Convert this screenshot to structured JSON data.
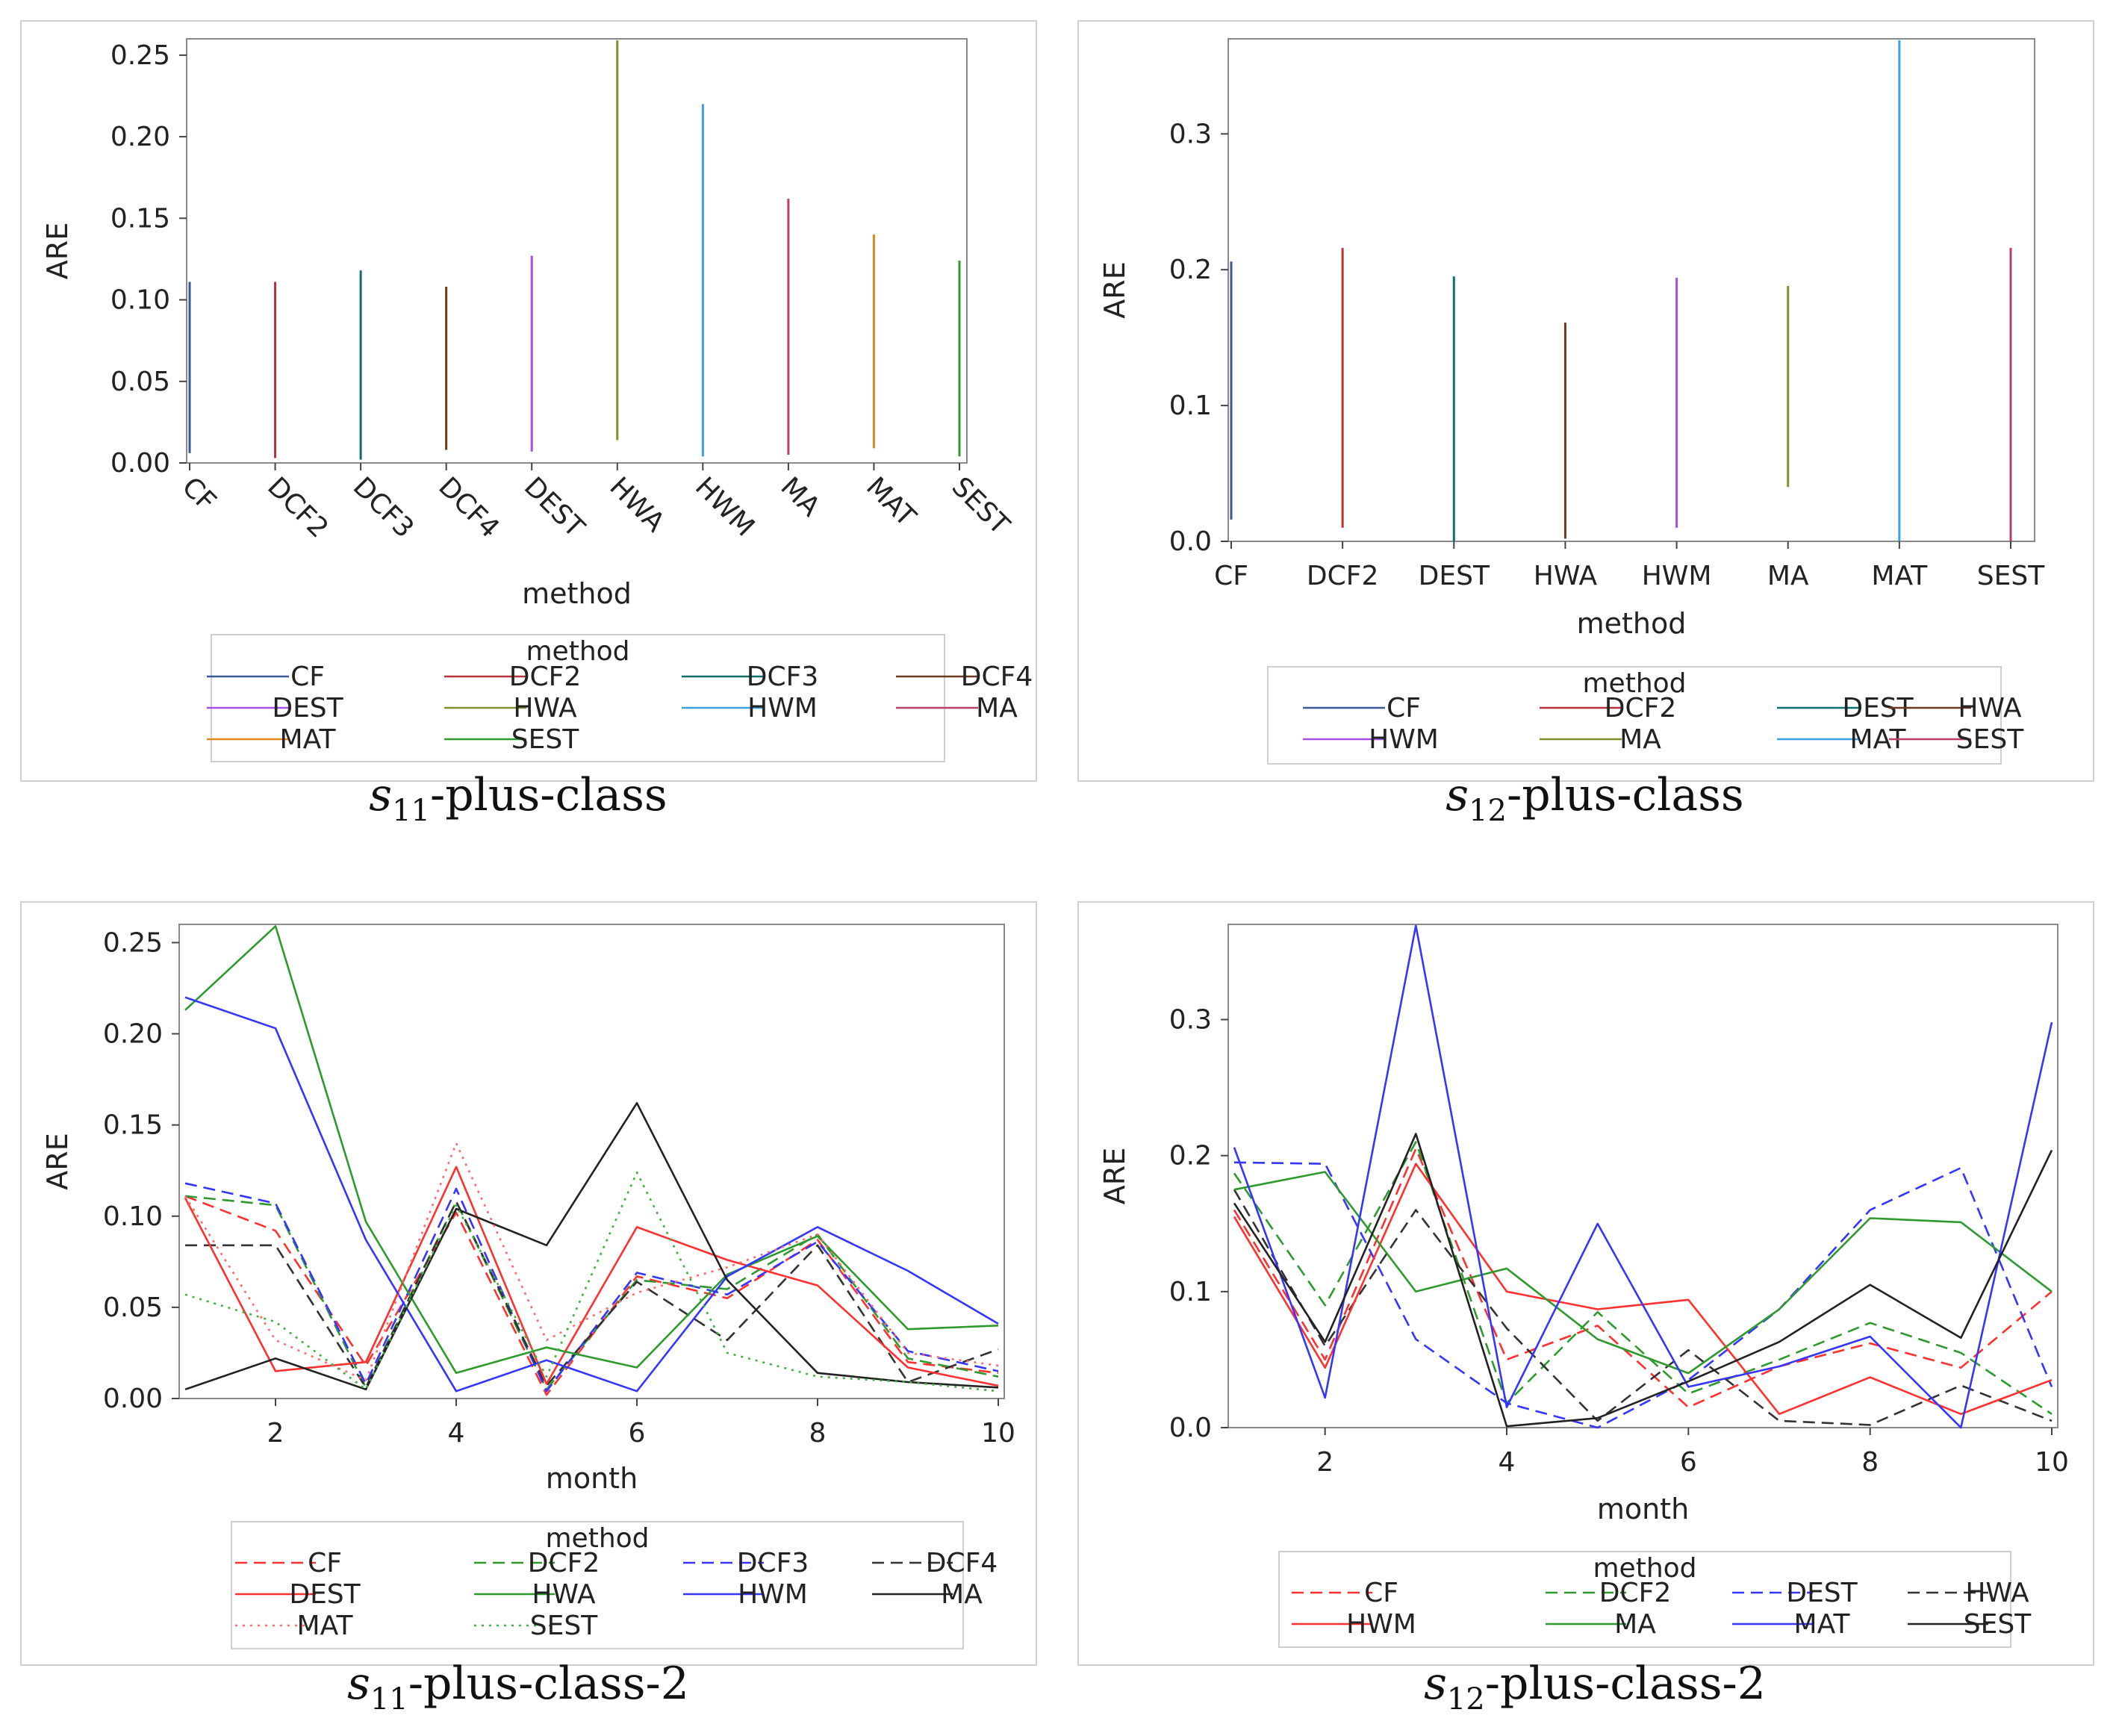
{
  "chart_data": [
    {
      "type": "line",
      "caption_sym": "s",
      "caption_sub": "11",
      "caption_rest": "-plus-class",
      "xlabel": "method",
      "ylabel": "ARE",
      "ylim": [
        0,
        0.26
      ],
      "yticks": [
        "0.00",
        "0.05",
        "0.10",
        "0.15",
        "0.20",
        "0.25"
      ],
      "categories": [
        "CF",
        "DCF2",
        "DCF3",
        "DCF4",
        "DEST",
        "HWA",
        "HWM",
        "MA",
        "MAT",
        "SEST"
      ],
      "legend_title": "method",
      "legend_items": [
        "CF",
        "DCF2",
        "DCF3",
        "DCF4",
        "DEST",
        "HWA",
        "HWM",
        "MA",
        "MAT",
        "SEST"
      ],
      "series": [
        {
          "name": "CF",
          "color": "#3b5998",
          "ymin": 0.006,
          "ymax": 0.111
        },
        {
          "name": "DCF2",
          "color": "#b5333a",
          "ymin": 0.003,
          "ymax": 0.111
        },
        {
          "name": "DCF3",
          "color": "#0f6e6e",
          "ymin": 0.002,
          "ymax": 0.118
        },
        {
          "name": "DCF4",
          "color": "#6b3a1e",
          "ymin": 0.008,
          "ymax": 0.108
        },
        {
          "name": "DEST",
          "color": "#a550e0",
          "ymin": 0.007,
          "ymax": 0.127
        },
        {
          "name": "HWA",
          "color": "#7f8f2a",
          "ymin": 0.014,
          "ymax": 0.259
        },
        {
          "name": "HWM",
          "color": "#3aa0e0",
          "ymin": 0.004,
          "ymax": 0.22
        },
        {
          "name": "MA",
          "color": "#b8406a",
          "ymin": 0.005,
          "ymax": 0.162
        },
        {
          "name": "MAT",
          "color": "#e08a1e",
          "ymin": 0.009,
          "ymax": 0.14
        },
        {
          "name": "SEST",
          "color": "#2e9a2e",
          "ymin": 0.004,
          "ymax": 0.124
        }
      ]
    },
    {
      "type": "line",
      "caption_sym": "s",
      "caption_sub": "12",
      "caption_rest": "-plus-class",
      "xlabel": "method",
      "ylabel": "ARE",
      "ylim": [
        0,
        0.37
      ],
      "yticks": [
        "0.0",
        "0.1",
        "0.2",
        "0.3"
      ],
      "categories": [
        "CF",
        "DCF2",
        "DEST",
        "HWA",
        "HWM",
        "MA",
        "MAT",
        "SEST"
      ],
      "legend_title": "method",
      "legend_items": [
        "CF",
        "DCF2",
        "DEST",
        "HWA",
        "HWM",
        "MA",
        "MAT",
        "SEST"
      ],
      "series": [
        {
          "name": "CF",
          "color": "#3b5998",
          "ymin": 0.016,
          "ymax": 0.206
        },
        {
          "name": "DCF2",
          "color": "#b5333a",
          "ymin": 0.01,
          "ymax": 0.216
        },
        {
          "name": "DEST",
          "color": "#0f6e6e",
          "ymin": 0.0,
          "ymax": 0.195
        },
        {
          "name": "HWA",
          "color": "#6b3a1e",
          "ymin": 0.002,
          "ymax": 0.161
        },
        {
          "name": "HWM",
          "color": "#a550e0",
          "ymin": 0.01,
          "ymax": 0.194
        },
        {
          "name": "MA",
          "color": "#7f8f2a",
          "ymin": 0.04,
          "ymax": 0.188
        },
        {
          "name": "MAT",
          "color": "#3aa0e0",
          "ymin": 0.0,
          "ymax": 0.369
        },
        {
          "name": "SEST",
          "color": "#b8406a",
          "ymin": 0.0,
          "ymax": 0.216
        }
      ]
    },
    {
      "type": "line",
      "caption_sym": "s",
      "caption_sub": "11",
      "caption_rest": "-plus-class-2",
      "xlabel": "month",
      "ylabel": "ARE",
      "xlim": [
        1,
        10
      ],
      "ylim": [
        0,
        0.26
      ],
      "xticks": [
        "2",
        "4",
        "6",
        "8",
        "10"
      ],
      "yticks": [
        "0.00",
        "0.05",
        "0.10",
        "0.15",
        "0.20",
        "0.25"
      ],
      "x": [
        1,
        2,
        3,
        4,
        5,
        6,
        7,
        8,
        9,
        10
      ],
      "legend_title": "method",
      "legend_items": [
        "CF",
        "DCF2",
        "DCF3",
        "DCF4",
        "DEST",
        "HWA",
        "HWM",
        "MA",
        "MAT",
        "SEST"
      ],
      "series": [
        {
          "name": "CF",
          "color": "#ff3030",
          "dash": "dash",
          "values": [
            0.111,
            0.092,
            0.018,
            0.102,
            0.002,
            0.067,
            0.055,
            0.087,
            0.02,
            0.014
          ]
        },
        {
          "name": "DCF2",
          "color": "#2e9a2e",
          "dash": "dash",
          "values": [
            0.111,
            0.106,
            0.006,
            0.108,
            0.005,
            0.065,
            0.06,
            0.09,
            0.022,
            0.012
          ]
        },
        {
          "name": "DCF3",
          "color": "#3535ff",
          "dash": "dash",
          "values": [
            0.118,
            0.107,
            0.008,
            0.115,
            0.004,
            0.069,
            0.057,
            0.086,
            0.026,
            0.015
          ]
        },
        {
          "name": "DCF4",
          "color": "#333333",
          "dash": "dash",
          "values": [
            0.084,
            0.084,
            0.006,
            0.108,
            0.007,
            0.064,
            0.032,
            0.084,
            0.009,
            0.027
          ]
        },
        {
          "name": "DEST",
          "color": "#ff3030",
          "dash": "solid",
          "values": [
            0.11,
            0.015,
            0.02,
            0.127,
            0.008,
            0.094,
            0.076,
            0.062,
            0.017,
            0.007
          ]
        },
        {
          "name": "HWA",
          "color": "#2e9a2e",
          "dash": "solid",
          "values": [
            0.213,
            0.259,
            0.097,
            0.014,
            0.028,
            0.017,
            0.068,
            0.089,
            0.038,
            0.04
          ]
        },
        {
          "name": "HWM",
          "color": "#3535ff",
          "dash": "solid",
          "values": [
            0.22,
            0.203,
            0.087,
            0.004,
            0.021,
            0.004,
            0.067,
            0.094,
            0.07,
            0.041
          ]
        },
        {
          "name": "MA",
          "color": "#222222",
          "dash": "solid",
          "values": [
            0.005,
            0.022,
            0.005,
            0.104,
            0.084,
            0.162,
            0.065,
            0.014,
            0.009,
            0.006
          ]
        },
        {
          "name": "MAT",
          "color": "#ff6a6a",
          "dash": "dot",
          "values": [
            0.111,
            0.032,
            0.01,
            0.14,
            0.032,
            0.058,
            0.072,
            0.09,
            0.025,
            0.018
          ]
        },
        {
          "name": "SEST",
          "color": "#40b040",
          "dash": "dot",
          "values": [
            0.057,
            0.042,
            0.005,
            0.106,
            0.012,
            0.124,
            0.025,
            0.012,
            0.009,
            0.004
          ]
        }
      ]
    },
    {
      "type": "line",
      "caption_sym": "s",
      "caption_sub": "12",
      "caption_rest": "-plus-class-2",
      "xlabel": "month",
      "ylabel": "ARE",
      "xlim": [
        1,
        10
      ],
      "ylim": [
        0,
        0.37
      ],
      "xticks": [
        "2",
        "4",
        "6",
        "8",
        "10"
      ],
      "yticks": [
        "0.0",
        "0.1",
        "0.2",
        "0.3"
      ],
      "x": [
        1,
        2,
        3,
        4,
        5,
        6,
        7,
        8,
        9,
        10
      ],
      "legend_title": "method",
      "legend_items": [
        "CF",
        "DCF2",
        "DEST",
        "HWA",
        "HWM",
        "MA",
        "MAT",
        "SEST"
      ],
      "series": [
        {
          "name": "CF",
          "color": "#ff3030",
          "dash": "dash",
          "values": [
            0.16,
            0.05,
            0.205,
            0.05,
            0.075,
            0.015,
            0.045,
            0.062,
            0.044,
            0.1
          ]
        },
        {
          "name": "DCF2",
          "color": "#2e9a2e",
          "dash": "dash",
          "values": [
            0.187,
            0.09,
            0.21,
            0.018,
            0.085,
            0.025,
            0.05,
            0.077,
            0.055,
            0.01
          ]
        },
        {
          "name": "DEST",
          "color": "#3535ff",
          "dash": "dash",
          "values": [
            0.195,
            0.194,
            0.065,
            0.018,
            0.0,
            0.035,
            0.087,
            0.16,
            0.191,
            0.03
          ]
        },
        {
          "name": "HWA",
          "color": "#333333",
          "dash": "dash",
          "values": [
            0.175,
            0.06,
            0.16,
            0.073,
            0.005,
            0.057,
            0.005,
            0.002,
            0.031,
            0.005
          ]
        },
        {
          "name": "HWM",
          "color": "#ff3030",
          "dash": "solid",
          "values": [
            0.155,
            0.044,
            0.194,
            0.1,
            0.087,
            0.094,
            0.01,
            0.037,
            0.01,
            0.035
          ]
        },
        {
          "name": "MA",
          "color": "#2e9a2e",
          "dash": "solid",
          "values": [
            0.175,
            0.188,
            0.1,
            0.117,
            0.065,
            0.04,
            0.087,
            0.154,
            0.151,
            0.1
          ]
        },
        {
          "name": "MAT",
          "color": "#3535ff",
          "dash": "solid",
          "values": [
            0.206,
            0.022,
            0.369,
            0.015,
            0.15,
            0.03,
            0.045,
            0.067,
            0.0,
            0.298
          ]
        },
        {
          "name": "SEST",
          "color": "#222222",
          "dash": "solid",
          "values": [
            0.165,
            0.063,
            0.216,
            0.001,
            0.007,
            0.034,
            0.063,
            0.105,
            0.066,
            0.204
          ]
        }
      ]
    }
  ]
}
